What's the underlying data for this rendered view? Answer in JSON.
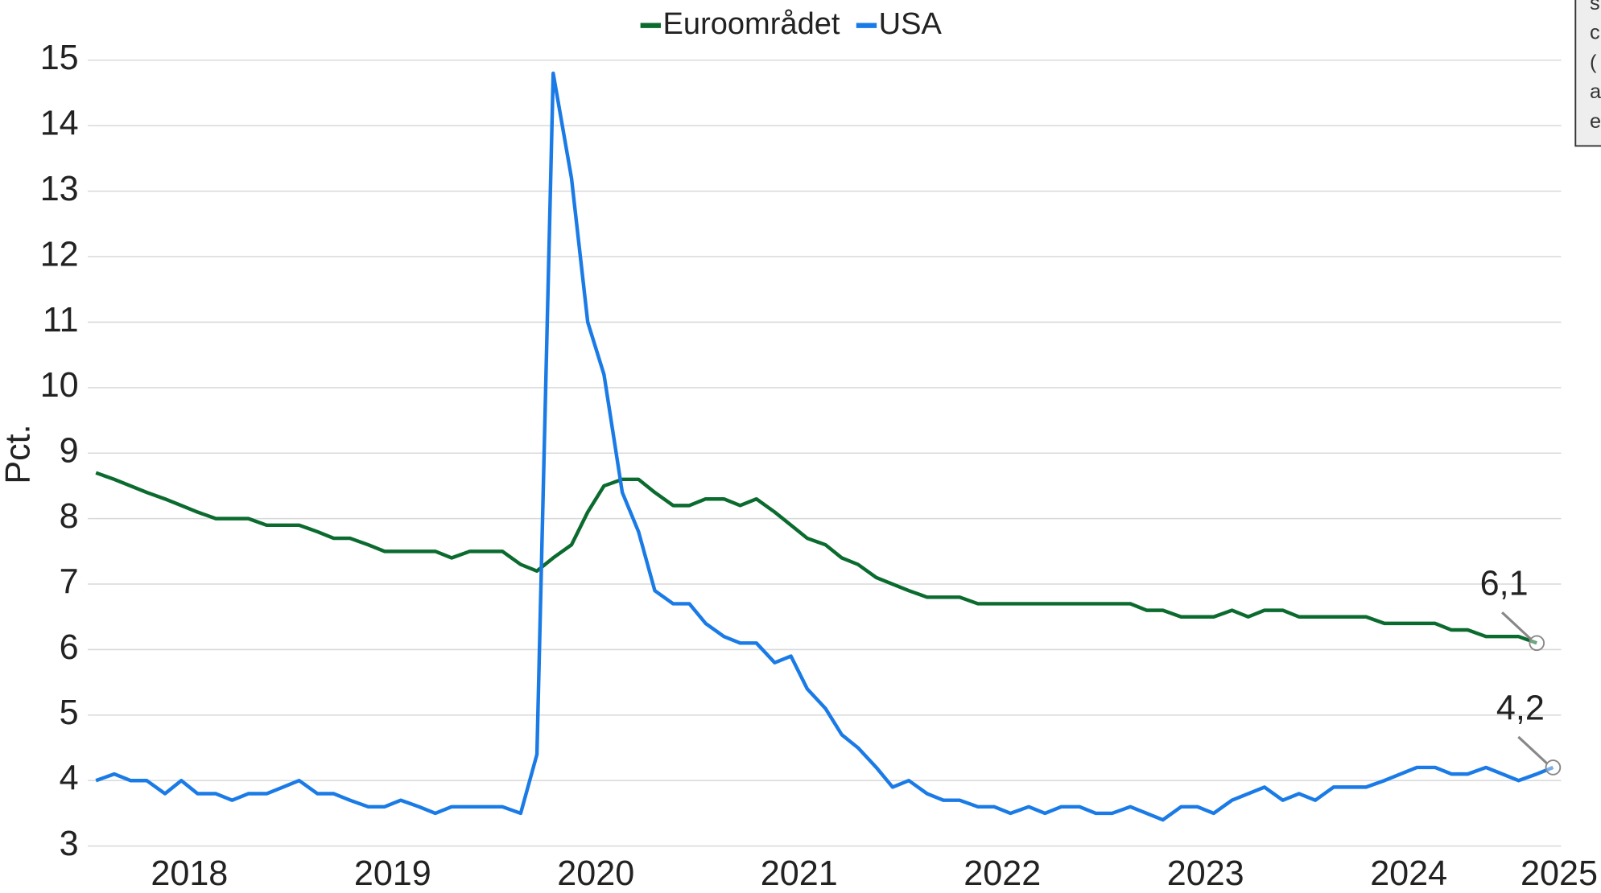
{
  "chart_data": {
    "type": "line",
    "ylabel": "Pct.",
    "x": [
      2017.54,
      2017.63,
      2017.71,
      2017.79,
      2017.88,
      2017.96,
      2018.04,
      2018.13,
      2018.21,
      2018.29,
      2018.38,
      2018.46,
      2018.54,
      2018.63,
      2018.71,
      2018.79,
      2018.88,
      2018.96,
      2019.04,
      2019.13,
      2019.21,
      2019.29,
      2019.38,
      2019.46,
      2019.54,
      2019.63,
      2019.71,
      2019.79,
      2019.88,
      2019.96,
      2020.04,
      2020.13,
      2020.21,
      2020.29,
      2020.38,
      2020.46,
      2020.54,
      2020.63,
      2020.71,
      2020.79,
      2020.88,
      2020.96,
      2021.04,
      2021.13,
      2021.21,
      2021.29,
      2021.38,
      2021.46,
      2021.54,
      2021.63,
      2021.71,
      2021.79,
      2021.88,
      2021.96,
      2022.04,
      2022.13,
      2022.21,
      2022.29,
      2022.38,
      2022.46,
      2022.54,
      2022.63,
      2022.71,
      2022.79,
      2022.88,
      2022.96,
      2023.04,
      2023.13,
      2023.21,
      2023.29,
      2023.38,
      2023.46,
      2023.54,
      2023.63,
      2023.71,
      2023.79,
      2023.88,
      2023.96,
      2024.04,
      2024.13,
      2024.21,
      2024.29,
      2024.38,
      2024.46,
      2024.54,
      2024.63,
      2024.71
    ],
    "series": [
      {
        "name": "Euroområdet",
        "color": "#0b6b2f",
        "end_label": "6,1",
        "values": [
          8.7,
          8.6,
          8.5,
          8.4,
          8.3,
          8.2,
          8.1,
          8.0,
          8.0,
          8.0,
          7.9,
          7.9,
          7.9,
          7.8,
          7.7,
          7.7,
          7.6,
          7.5,
          7.5,
          7.5,
          7.5,
          7.4,
          7.5,
          7.5,
          7.5,
          7.3,
          7.2,
          7.4,
          7.6,
          8.1,
          8.5,
          8.6,
          8.6,
          8.4,
          8.2,
          8.2,
          8.3,
          8.3,
          8.2,
          8.3,
          8.1,
          7.9,
          7.7,
          7.6,
          7.4,
          7.3,
          7.1,
          7.0,
          6.9,
          6.8,
          6.8,
          6.8,
          6.7,
          6.7,
          6.7,
          6.7,
          6.7,
          6.7,
          6.7,
          6.7,
          6.7,
          6.7,
          6.6,
          6.6,
          6.5,
          6.5,
          6.5,
          6.6,
          6.5,
          6.6,
          6.6,
          6.5,
          6.5,
          6.5,
          6.5,
          6.5,
          6.4,
          6.4,
          6.4,
          6.4,
          6.3,
          6.3,
          6.2,
          6.2,
          6.2,
          6.1,
          null
        ]
      },
      {
        "name": "USA",
        "color": "#1a7be6",
        "end_label": "4,2",
        "values": [
          4.0,
          4.1,
          4.0,
          4.0,
          3.8,
          4.0,
          3.8,
          3.8,
          3.7,
          3.8,
          3.8,
          3.9,
          4.0,
          3.8,
          3.8,
          3.7,
          3.6,
          3.6,
          3.7,
          3.6,
          3.5,
          3.6,
          3.6,
          3.6,
          3.6,
          3.5,
          4.4,
          14.8,
          13.2,
          11.0,
          10.2,
          8.4,
          7.8,
          6.9,
          6.7,
          6.7,
          6.4,
          6.2,
          6.1,
          6.1,
          5.8,
          5.9,
          5.4,
          5.1,
          4.7,
          4.5,
          4.2,
          3.9,
          4.0,
          3.8,
          3.7,
          3.7,
          3.6,
          3.6,
          3.5,
          3.6,
          3.5,
          3.6,
          3.6,
          3.5,
          3.5,
          3.6,
          3.5,
          3.4,
          3.6,
          3.6,
          3.5,
          3.7,
          3.8,
          3.9,
          3.7,
          3.8,
          3.7,
          3.9,
          3.9,
          3.9,
          4.0,
          4.1,
          4.2,
          4.2,
          4.1,
          4.1,
          4.2,
          4.1,
          4.0,
          4.1,
          4.2
        ]
      }
    ],
    "xlim": [
      2017.5,
      2024.75
    ],
    "xticks": [
      2018,
      2019,
      2020,
      2021,
      2022,
      2023,
      2024,
      2025
    ],
    "ylim": [
      3,
      15
    ],
    "yticks": [
      3,
      4,
      5,
      6,
      7,
      8,
      9,
      10,
      11,
      12,
      13,
      14,
      15
    ],
    "grid": true,
    "legend": "top"
  },
  "note_box": {
    "lines": [
      "s",
      "c",
      "(",
      "a",
      "e"
    ]
  }
}
